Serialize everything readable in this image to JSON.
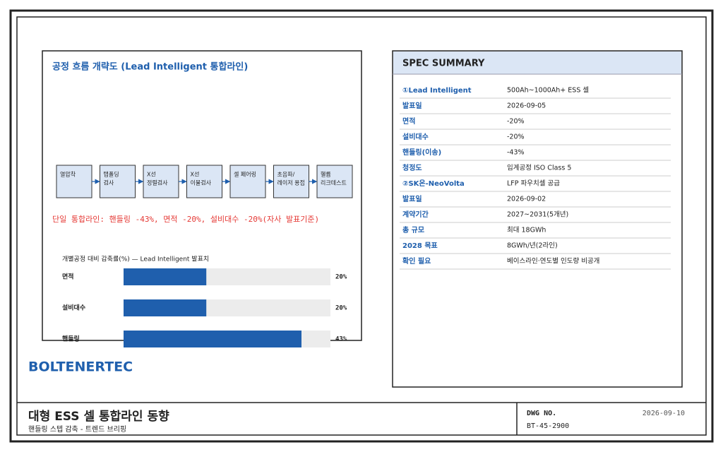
{
  "diagram": {
    "title": "공정 흐름 개략도 (Lead Intelligent 통합라인)",
    "steps": [
      [
        "열압착"
      ],
      [
        "탭폴딩",
        "검사"
      ],
      [
        "X선",
        "정렬검사"
      ],
      [
        "X선",
        "이물검사"
      ],
      [
        "셀 페어링"
      ],
      [
        "초음파/",
        "레이저 용접"
      ],
      [
        "헬륨",
        "리크테스트"
      ]
    ],
    "note": "단일 통합라인: 핸들링 -43%, 면적 -20%, 설비대수 -20%(자사 발표기준)"
  },
  "chart": {
    "type": "bar",
    "title": "개별공정 대비 감축률(%) — Lead Intelligent 발표치",
    "categories": [
      "면적",
      "설비대수",
      "핸들링"
    ],
    "values": [
      20,
      20,
      43
    ],
    "value_labels": [
      "20%",
      "20%",
      "43%"
    ],
    "color": "#1f5fad",
    "xlim": [
      0,
      50
    ]
  },
  "brand": "BOLTENERTEC",
  "spec": {
    "title": "SPEC SUMMARY",
    "rows": [
      [
        "①Lead Intelligent",
        "500Ah~1000Ah+ ESS 셀"
      ],
      [
        "발표일",
        "2026-09-05"
      ],
      [
        "면적",
        "-20%"
      ],
      [
        "설비대수",
        "-20%"
      ],
      [
        "핸들링(이송)",
        "-43%"
      ],
      [
        "청정도",
        "임계공정 ISO Class 5"
      ],
      [
        "②SK온-NeoVolta",
        "LFP 파우치셀 공급"
      ],
      [
        "발표일",
        "2026-09-02"
      ],
      [
        "계약기간",
        "2027~2031(5개년)"
      ],
      [
        "총 규모",
        "최대 18GWh"
      ],
      [
        "2028 목표",
        "8GWh/년(2라인)"
      ],
      [
        "확인 필요",
        "베이스라인·연도별 인도량 비공개"
      ]
    ]
  },
  "footer": {
    "title": "대형 ESS 셀 통합라인 동향",
    "subtitle": "핸들링 스텝 감축 - 트렌드 브리핑",
    "dwg_label": "DWG NO.",
    "date": "2026-09-10",
    "dwg_no": "BT-45-2900"
  }
}
